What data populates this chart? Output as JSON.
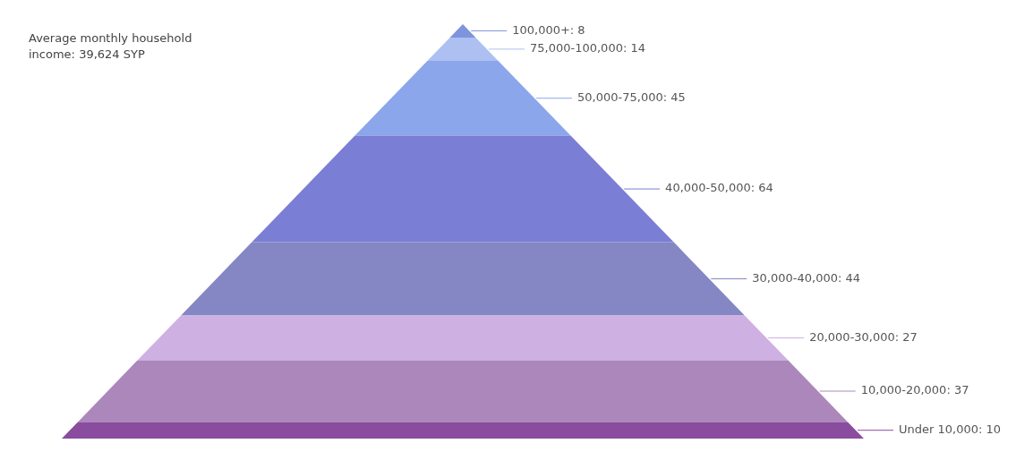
{
  "chart_data": {
    "type": "other",
    "categories": [
      "100,000+",
      "75,000-100,000",
      "50,000-75,000",
      "40,000-50,000",
      "30,000-40,000",
      "20,000-30,000",
      "10,000-20,000",
      "Under 10,000"
    ],
    "values": [
      8,
      14,
      45,
      64,
      44,
      27,
      37,
      10
    ],
    "colors": [
      "#7f94dc",
      "#adc0f1",
      "#8ba6ea",
      "#7a7ed4",
      "#8487c3",
      "#cfb0e3",
      "#ab87bc",
      "#8a4c9e"
    ],
    "value_labels": [
      ": 8",
      ": 14",
      ": 45",
      ": 64",
      ": 44",
      ": 27",
      ": 37",
      ": 10"
    ],
    "annotations": [
      "Average monthly household income: 39,624 SYP"
    ]
  }
}
